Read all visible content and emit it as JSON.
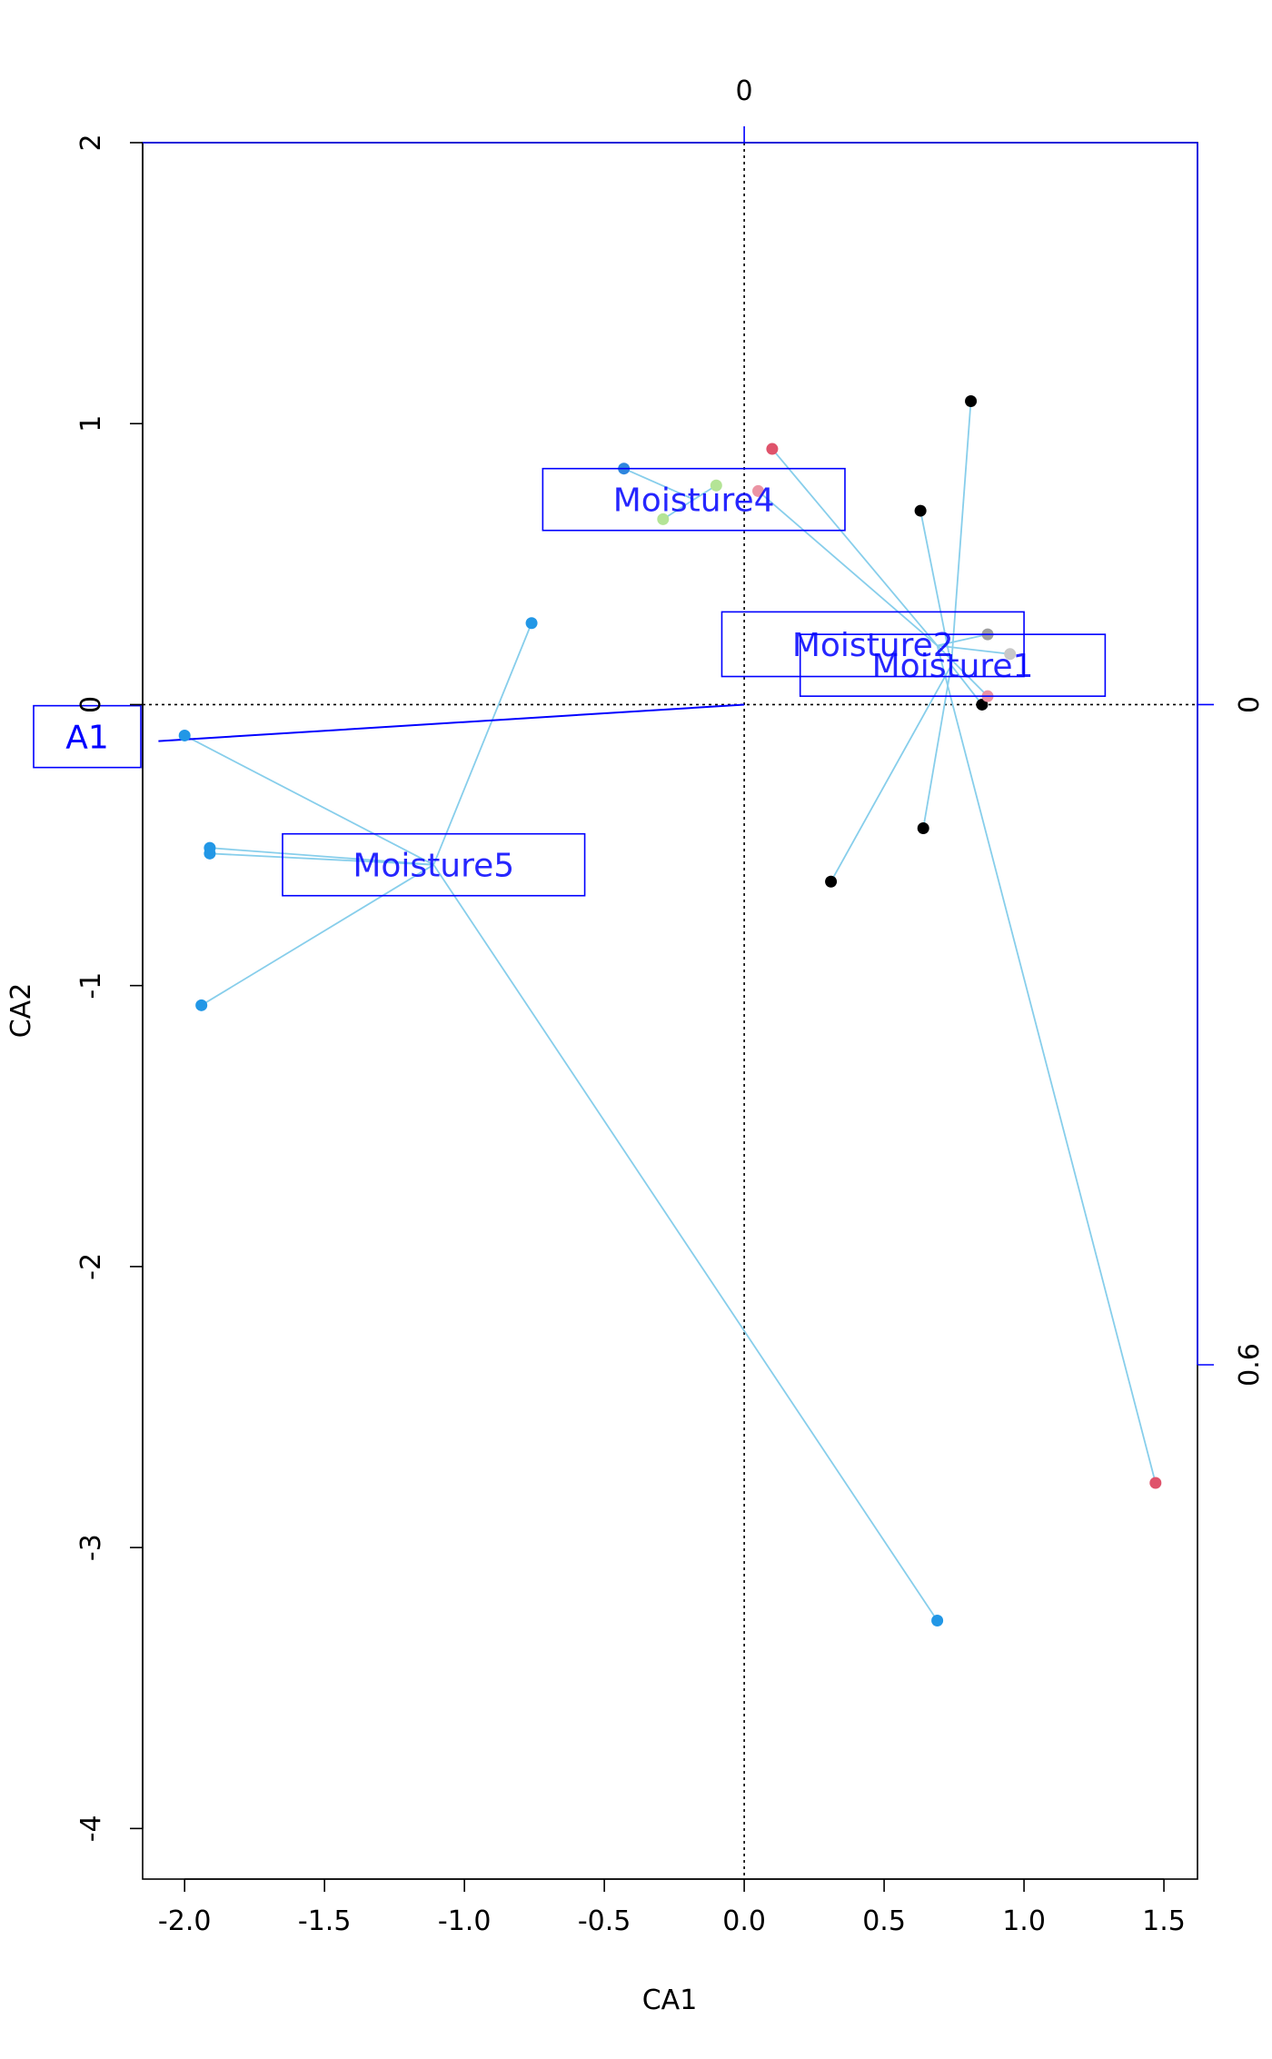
{
  "chart_data": {
    "type": "scatter",
    "title": "",
    "xlabel": "CA1",
    "ylabel": "CA2",
    "xlim": [
      -2.15,
      1.62
    ],
    "ylim": [
      -4.18,
      2.0
    ],
    "x_ticks": [
      -2.0,
      -1.5,
      -1.0,
      -0.5,
      0.0,
      0.5,
      1.0,
      1.5
    ],
    "x_tick_labels": [
      "-2.0",
      "-1.5",
      "-1.0",
      "-0.5",
      "0.0",
      "0.5",
      "1.0",
      "1.5"
    ],
    "y_ticks": [
      2,
      1,
      0,
      -1,
      -2,
      -3,
      -4
    ],
    "y_tick_labels": [
      "2",
      "1",
      "0",
      "-1",
      "-2",
      "-3",
      "-4"
    ],
    "top_axis": {
      "ticks": [
        0
      ],
      "labels": [
        "0"
      ],
      "color": "#0000ff"
    },
    "right_axis": {
      "ticks": [
        0,
        0.6
      ],
      "labels": [
        "0",
        "0.6"
      ],
      "color": "#0000ff"
    },
    "zero_lines": true,
    "spider_color": "#87ceeb",
    "box_color": "#0000ff",
    "groups": [
      {
        "label": "Moisture1",
        "center": [
          0.74,
          0.14
        ],
        "box": [
          0.2,
          1.29,
          0.03,
          0.25
        ],
        "points": [
          {
            "x": 0.81,
            "y": 1.08,
            "color": "#000000"
          },
          {
            "x": 0.63,
            "y": 0.69,
            "color": "#000000"
          },
          {
            "x": 0.64,
            "y": -0.44,
            "color": "#000000"
          },
          {
            "x": 0.31,
            "y": -0.63,
            "color": "#000000"
          },
          {
            "x": 0.85,
            "y": 0.0,
            "color": "#000000"
          }
        ]
      },
      {
        "label": "Moisture2",
        "center": [
          0.69,
          0.21
        ],
        "box": [
          -0.08,
          1.0,
          0.1,
          0.33
        ],
        "points": [
          {
            "x": 0.1,
            "y": 0.91,
            "color": "#df536b"
          },
          {
            "x": 0.05,
            "y": 0.76,
            "color": "#eb94a4"
          },
          {
            "x": 0.87,
            "y": 0.03,
            "color": "#eb94a4"
          },
          {
            "x": 1.47,
            "y": -2.77,
            "color": "#df536b"
          },
          {
            "x": 0.87,
            "y": 0.25,
            "color": "#9e9e9e"
          },
          {
            "x": 0.95,
            "y": 0.18,
            "color": "#c8c8c8"
          }
        ]
      },
      {
        "label": "Moisture4",
        "center": [
          -0.18,
          0.73
        ],
        "box": [
          -0.72,
          0.36,
          0.62,
          0.84
        ],
        "points": [
          {
            "x": -0.43,
            "y": 0.84,
            "color": "#2e86de"
          },
          {
            "x": -0.1,
            "y": 0.78,
            "color": "#b4e496"
          },
          {
            "x": -0.29,
            "y": 0.66,
            "color": "#b4e496"
          }
        ]
      },
      {
        "label": "Moisture5",
        "center": [
          -1.11,
          -0.57
        ],
        "box": [
          -1.65,
          -0.57,
          -0.68,
          -0.46
        ],
        "points": [
          {
            "x": -0.76,
            "y": 0.29,
            "color": "#2297e6"
          },
          {
            "x": -2.0,
            "y": -0.11,
            "color": "#2297e6"
          },
          {
            "x": -1.91,
            "y": -0.51,
            "color": "#2297e6"
          },
          {
            "x": -1.91,
            "y": -0.53,
            "color": "#2297e6"
          },
          {
            "x": -1.94,
            "y": -1.07,
            "color": "#2297e6"
          },
          {
            "x": 0.69,
            "y": -3.26,
            "color": "#2297e6"
          }
        ]
      }
    ],
    "vectors": [
      {
        "label": "A1",
        "x": -2.1,
        "y": -0.13,
        "color": "#0000ff"
      }
    ]
  }
}
